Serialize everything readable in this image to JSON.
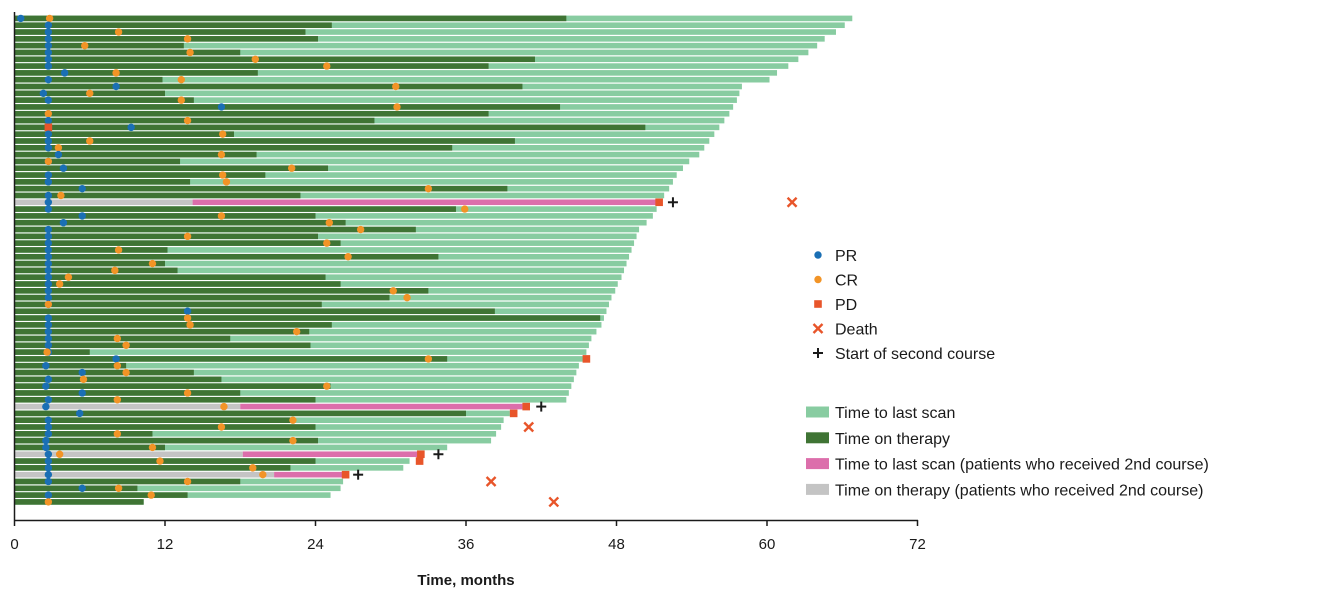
{
  "chart_data": {
    "type": "bar",
    "subtype": "swimmer-plot",
    "title": "",
    "xlabel": "Time, months",
    "ylabel": "",
    "xlim": [
      0,
      72
    ],
    "x_ticks": [
      0,
      12,
      24,
      36,
      48,
      60,
      72
    ],
    "x_tick_labels": [
      "0",
      "12",
      "24",
      "36",
      "48",
      "60",
      "72"
    ],
    "grid": false,
    "legend_position": "right",
    "colors": {
      "last_scan": "#88cca1",
      "therapy": "#3f7434",
      "second_last_scan": "#dc6eab",
      "second_therapy": "#c4c4c4",
      "pr": "#1a6fb4",
      "cr": "#f29426",
      "pd": "#e8552a",
      "death": "#e8552a",
      "second_start": "#1a1a1a"
    },
    "legend": [
      {
        "key": "pr",
        "label": "PR",
        "marker": "circle"
      },
      {
        "key": "cr",
        "label": "CR",
        "marker": "circle"
      },
      {
        "key": "pd",
        "label": "PD",
        "marker": "square"
      },
      {
        "key": "death",
        "label": "Death",
        "marker": "x"
      },
      {
        "key": "second_start",
        "label": "Start of second course",
        "marker": "plus"
      },
      {
        "key": "last_scan",
        "label": "Time to last scan",
        "marker": "bar"
      },
      {
        "key": "therapy",
        "label": "Time on therapy",
        "marker": "bar"
      },
      {
        "key": "second_last_scan",
        "label": "Time to last scan (patients who received 2nd course)",
        "marker": "bar"
      },
      {
        "key": "second_therapy",
        "label": "Time on therapy (patients who received 2nd course)",
        "marker": "bar"
      }
    ],
    "patients": [
      {
        "last_scan": 66.8,
        "therapy": 44.0,
        "pr": 0.5,
        "cr": 2.8
      },
      {
        "last_scan": 66.2,
        "therapy": 25.3,
        "pr": 2.7
      },
      {
        "last_scan": 65.5,
        "therapy": 23.2,
        "pr": 2.7,
        "cr": 8.3
      },
      {
        "last_scan": 64.6,
        "therapy": 24.2,
        "pr": 2.7,
        "cr": 13.8
      },
      {
        "last_scan": 64.0,
        "therapy": 13.5,
        "pr": 2.7,
        "cr": 5.6
      },
      {
        "last_scan": 63.3,
        "therapy": 18.0,
        "pr": 2.7,
        "cr": 14.0
      },
      {
        "last_scan": 62.5,
        "therapy": 41.5,
        "pr": 2.7,
        "cr": 19.2
      },
      {
        "last_scan": 61.7,
        "therapy": 37.8,
        "pr": 2.7,
        "cr": 24.9
      },
      {
        "last_scan": 60.8,
        "therapy": 19.4,
        "pr": 4.0,
        "cr": 8.1
      },
      {
        "last_scan": 60.2,
        "therapy": 11.8,
        "pr": 2.7,
        "cr": 13.3
      },
      {
        "last_scan": 58.0,
        "therapy": 40.5,
        "pr": 8.1,
        "cr": 30.4
      },
      {
        "last_scan": 57.8,
        "therapy": 12.0,
        "pr": 2.3,
        "cr": 6.0
      },
      {
        "last_scan": 57.6,
        "therapy": 14.3,
        "pr": 2.7,
        "cr": 13.3
      },
      {
        "last_scan": 57.3,
        "therapy": 43.5,
        "pr": 16.5,
        "cr": 30.5
      },
      {
        "last_scan": 57.0,
        "therapy": 37.8,
        "pr": 2.7,
        "cr": 2.7
      },
      {
        "last_scan": 56.6,
        "therapy": 28.7,
        "pr": 2.7,
        "cr": 13.8
      },
      {
        "last_scan": 56.2,
        "therapy": 50.3,
        "pr": 9.3,
        "pd": 2.7
      },
      {
        "last_scan": 55.8,
        "therapy": 17.5,
        "pr": 2.7,
        "cr": 16.6
      },
      {
        "last_scan": 55.4,
        "therapy": 39.9,
        "pr": 2.7,
        "cr": 6.0
      },
      {
        "last_scan": 55.0,
        "therapy": 34.9,
        "pr": 2.7,
        "cr": 3.5
      },
      {
        "last_scan": 54.6,
        "therapy": 19.3,
        "pr": 3.5,
        "cr": 16.5
      },
      {
        "last_scan": 53.8,
        "therapy": 13.2,
        "pr": 2.7,
        "cr": 2.7
      },
      {
        "last_scan": 53.3,
        "therapy": 25.0,
        "pr": 3.9,
        "cr": 22.1
      },
      {
        "last_scan": 52.8,
        "therapy": 20.0,
        "pr": 2.7,
        "cr": 16.6
      },
      {
        "last_scan": 52.5,
        "therapy": 14.0,
        "pr": 2.7,
        "cr": 16.9
      },
      {
        "last_scan": 52.2,
        "therapy": 39.3,
        "pr": 5.4,
        "cr": 33.0
      },
      {
        "last_scan": 51.8,
        "therapy": 22.8,
        "pr": 2.7,
        "cr": 3.7
      },
      {
        "second_course": true,
        "therapy": 14.2,
        "last_scan": 51.4,
        "pd": 51.4,
        "second_start": 52.5,
        "death": 62.0,
        "pr": 2.7
      },
      {
        "last_scan": 51.2,
        "therapy": 35.2,
        "pr": 2.7,
        "cr": 35.9
      },
      {
        "last_scan": 50.9,
        "therapy": 24.0,
        "pr": 5.4,
        "cr": 16.5
      },
      {
        "last_scan": 50.4,
        "therapy": 26.4,
        "pr": 3.9,
        "cr": 25.1
      },
      {
        "last_scan": 49.8,
        "therapy": 32.0,
        "pr": 2.7,
        "cr": 27.6
      },
      {
        "last_scan": 49.6,
        "therapy": 24.2,
        "pr": 2.7,
        "cr": 13.8
      },
      {
        "last_scan": 49.4,
        "therapy": 26.0,
        "pr": 2.7,
        "cr": 24.9
      },
      {
        "last_scan": 49.2,
        "therapy": 12.2,
        "pr": 2.7,
        "cr": 8.3
      },
      {
        "last_scan": 49.0,
        "therapy": 33.8,
        "pr": 2.7,
        "cr": 26.6
      },
      {
        "last_scan": 48.8,
        "therapy": 12.0,
        "pr": 2.7,
        "cr": 11.0
      },
      {
        "last_scan": 48.6,
        "therapy": 13.0,
        "pr": 2.7,
        "cr": 8.0
      },
      {
        "last_scan": 48.4,
        "therapy": 24.8,
        "pr": 2.7,
        "cr": 4.3
      },
      {
        "last_scan": 48.1,
        "therapy": 26.0,
        "pr": 2.7,
        "cr": 3.6
      },
      {
        "last_scan": 47.9,
        "therapy": 33.0,
        "pr": 2.7,
        "cr": 30.2
      },
      {
        "last_scan": 47.6,
        "therapy": 29.9,
        "pr": 2.7,
        "cr": 31.3
      },
      {
        "last_scan": 47.4,
        "therapy": 24.5,
        "pr": 2.7,
        "cr": 2.7
      },
      {
        "last_scan": 47.2,
        "therapy": 38.3,
        "pr": 13.8
      },
      {
        "last_scan": 47.0,
        "therapy": 46.7,
        "pr": 2.7,
        "cr": 13.8
      },
      {
        "last_scan": 46.8,
        "therapy": 25.3,
        "pr": 2.7,
        "cr": 14.0
      },
      {
        "last_scan": 46.4,
        "therapy": 23.5,
        "pr": 2.7,
        "cr": 22.5
      },
      {
        "last_scan": 46.0,
        "therapy": 17.2,
        "pr": 2.7,
        "cr": 8.2
      },
      {
        "last_scan": 45.8,
        "therapy": 23.6,
        "pr": 2.7,
        "cr": 8.9
      },
      {
        "last_scan": 45.6,
        "therapy": 6.0,
        "pr": 2.7,
        "cr": 2.6
      },
      {
        "last_scan": 45.4,
        "therapy": 34.5,
        "pr": 8.1,
        "cr": 33.0,
        "pd": 45.6
      },
      {
        "last_scan": 45.0,
        "therapy": 8.9,
        "pr": 2.5,
        "cr": 8.2
      },
      {
        "last_scan": 44.8,
        "therapy": 14.3,
        "pr": 5.4,
        "cr": 8.9
      },
      {
        "last_scan": 44.6,
        "therapy": 16.5,
        "pr": 2.7,
        "cr": 5.5
      },
      {
        "last_scan": 44.4,
        "therapy": 25.2,
        "pr": 2.5,
        "cr": 24.9
      },
      {
        "last_scan": 44.2,
        "therapy": 18.0,
        "pr": 5.4,
        "cr": 13.8
      },
      {
        "last_scan": 44.0,
        "therapy": 24.0,
        "pr": 2.7,
        "cr": 8.2
      },
      {
        "second_course": true,
        "therapy": 18.0,
        "last_scan": 40.5,
        "pd": 40.8,
        "second_start": 42.0,
        "pr": 2.5,
        "cr": 16.7
      },
      {
        "last_scan": 39.5,
        "therapy": 36.0,
        "pr": 5.2,
        "pd": 39.8
      },
      {
        "last_scan": 39.0,
        "therapy": 22.0,
        "pr": 2.7,
        "cr": 22.2
      },
      {
        "last_scan": 38.8,
        "therapy": 24.0,
        "pr": 2.7,
        "cr": 16.5,
        "death": 41.0
      },
      {
        "last_scan": 38.4,
        "therapy": 11.0,
        "pr": 2.7,
        "cr": 8.2
      },
      {
        "last_scan": 38.0,
        "therapy": 24.2,
        "pr": 2.5,
        "cr": 22.2
      },
      {
        "last_scan": 34.5,
        "therapy": 12.0,
        "pr": 2.5,
        "cr": 11.0
      },
      {
        "second_course": true,
        "therapy": 18.2,
        "last_scan": 32.3,
        "pd": 32.4,
        "second_start": 33.8,
        "pr": 2.7,
        "cr": 3.6
      },
      {
        "last_scan": 31.5,
        "therapy": 24.0,
        "pr": 2.7,
        "cr": 11.6,
        "pd": 32.3
      },
      {
        "last_scan": 31.0,
        "therapy": 22.0,
        "pr": 2.7,
        "cr": 19.0
      },
      {
        "second_course": true,
        "therapy": 20.7,
        "last_scan": 26.2,
        "pd": 26.4,
        "second_start": 27.4,
        "pr": 2.7,
        "cr": 19.8
      },
      {
        "last_scan": 26.2,
        "therapy": 18.0,
        "pr": 2.7,
        "cr": 13.8,
        "death": 38.0
      },
      {
        "last_scan": 26.0,
        "therapy": 9.8,
        "pr": 5.4,
        "cr": 8.3
      },
      {
        "last_scan": 25.2,
        "therapy": 13.8,
        "pr": 2.7,
        "cr": 10.9
      },
      {
        "last_scan": 10.3,
        "therapy": 10.3,
        "cr": 2.7,
        "death": 43.0
      }
    ]
  }
}
